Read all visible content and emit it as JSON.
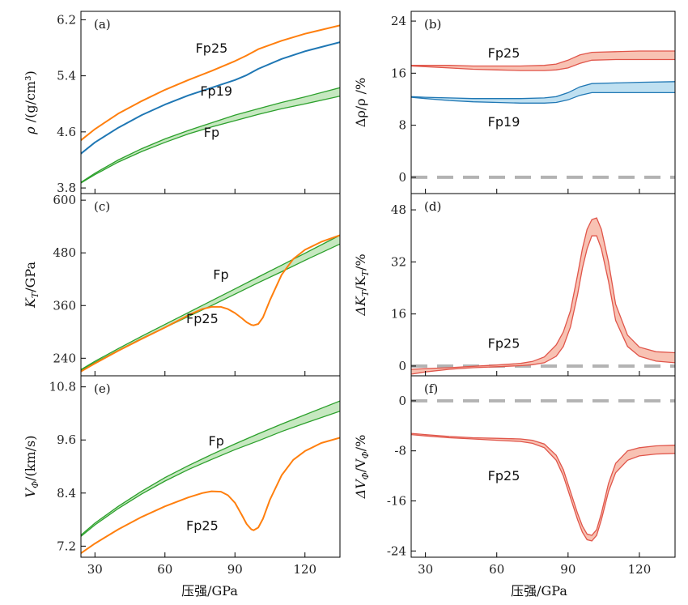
{
  "colors": {
    "fp": "#2ca02c",
    "fp_fill": "#c6e8c0",
    "fp19": "#1f77b4",
    "fp19_fill": "#bfe0f1",
    "fp25": "#ff7f0e",
    "fp25_diff": "#e0554a",
    "fp25_diff_fill": "#f8c2b3",
    "ref": "#b3b3b3"
  },
  "xlabel": "压强/GPa",
  "chart_data": [
    {
      "id": "a",
      "panel_label": "(a)",
      "type": "line",
      "ylabel": {
        "symbol": "ρ",
        "rest": " /(g/cm³)"
      },
      "xlim": [
        24,
        135
      ],
      "ylim": [
        3.72,
        6.32
      ],
      "yticks": [
        3.8,
        4.6,
        5.4,
        6.2
      ],
      "ytick_labels": [
        "3.8",
        "4.6",
        "5.4",
        "6.2"
      ],
      "xticks": [
        30,
        60,
        90,
        120
      ],
      "series": [
        {
          "name": "Fp25",
          "kind": "line",
          "color": "fp25",
          "x": [
            24,
            30,
            40,
            50,
            60,
            70,
            80,
            90,
            95,
            100,
            110,
            120,
            135
          ],
          "y": [
            4.48,
            4.64,
            4.86,
            5.04,
            5.2,
            5.34,
            5.47,
            5.61,
            5.69,
            5.78,
            5.9,
            6.0,
            6.12
          ]
        },
        {
          "name": "Fp19",
          "kind": "line",
          "color": "fp19",
          "x": [
            24,
            30,
            40,
            50,
            60,
            70,
            80,
            90,
            95,
            100,
            110,
            120,
            135
          ],
          "y": [
            4.29,
            4.45,
            4.66,
            4.84,
            4.99,
            5.12,
            5.23,
            5.34,
            5.41,
            5.5,
            5.64,
            5.75,
            5.88
          ]
        },
        {
          "name": "Fp",
          "kind": "band",
          "color": "fp",
          "fill": "fp_fill",
          "x": [
            24,
            30,
            40,
            50,
            60,
            70,
            80,
            90,
            100,
            110,
            120,
            135
          ],
          "y1": [
            3.87,
            3.99,
            4.17,
            4.32,
            4.45,
            4.57,
            4.67,
            4.76,
            4.85,
            4.93,
            5.0,
            5.11
          ],
          "y2": [
            3.88,
            4.01,
            4.2,
            4.36,
            4.5,
            4.62,
            4.73,
            4.84,
            4.93,
            5.02,
            5.1,
            5.23
          ]
        }
      ],
      "annotations": [
        {
          "text": "Fp25",
          "x": 80,
          "y": 5.73
        },
        {
          "text": "Fp19",
          "x": 82,
          "y": 5.12
        },
        {
          "text": "Fp",
          "x": 80,
          "y": 4.53
        }
      ]
    },
    {
      "id": "b",
      "panel_label": "(b)",
      "type": "line",
      "ylabel": {
        "symbol": "Δ",
        "rest": "ρ/ρ /%",
        "plain": true
      },
      "xlim": [
        24,
        135
      ],
      "ylim": [
        -2.5,
        25.5
      ],
      "yticks": [
        0,
        8,
        16,
        24
      ],
      "ytick_labels": [
        "0",
        "8",
        "16",
        "24"
      ],
      "xticks": [
        30,
        60,
        90,
        120
      ],
      "reference_line": 0,
      "series": [
        {
          "name": "Fp25",
          "kind": "band",
          "color": "fp25_diff",
          "fill": "fp25_diff_fill",
          "x": [
            24,
            30,
            40,
            50,
            60,
            70,
            80,
            85,
            90,
            95,
            100,
            110,
            120,
            135
          ],
          "y1": [
            17.1,
            17.0,
            16.8,
            16.6,
            16.5,
            16.4,
            16.4,
            16.5,
            16.8,
            17.5,
            18.0,
            18.1,
            18.1,
            18.1
          ],
          "y2": [
            17.2,
            17.2,
            17.2,
            17.1,
            17.1,
            17.1,
            17.2,
            17.4,
            18.0,
            18.8,
            19.2,
            19.3,
            19.4,
            19.4
          ]
        },
        {
          "name": "Fp19",
          "kind": "band",
          "color": "fp19",
          "fill": "fp19_fill",
          "x": [
            24,
            30,
            40,
            50,
            60,
            70,
            80,
            85,
            90,
            95,
            100,
            110,
            120,
            135
          ],
          "y1": [
            12.3,
            12.1,
            11.8,
            11.6,
            11.5,
            11.4,
            11.4,
            11.5,
            11.9,
            12.6,
            13.0,
            13.0,
            13.0,
            13.0
          ],
          "y2": [
            12.4,
            12.3,
            12.2,
            12.1,
            12.1,
            12.1,
            12.2,
            12.4,
            13.0,
            13.9,
            14.4,
            14.5,
            14.6,
            14.7
          ]
        }
      ],
      "annotations": [
        {
          "text": "Fp25",
          "x": 63,
          "y": 18.4
        },
        {
          "text": "Fp19",
          "x": 63,
          "y": 7.8
        }
      ]
    },
    {
      "id": "c",
      "panel_label": "(c)",
      "type": "line",
      "ylabel": {
        "symbol": "K",
        "sub": "T",
        "rest": "/GPa"
      },
      "xlim": [
        24,
        135
      ],
      "ylim": [
        200,
        615
      ],
      "yticks": [
        240,
        360,
        480,
        600
      ],
      "ytick_labels": [
        "240",
        "360",
        "480",
        "600"
      ],
      "xticks": [
        30,
        60,
        90,
        120
      ],
      "series": [
        {
          "name": "Fp",
          "kind": "band",
          "color": "fp",
          "fill": "fp_fill",
          "x": [
            24,
            30,
            40,
            50,
            60,
            70,
            80,
            90,
            100,
            110,
            120,
            135
          ],
          "y1": [
            212,
            230,
            258,
            285,
            310,
            335,
            360,
            386,
            412,
            437,
            463,
            500
          ],
          "y2": [
            214,
            233,
            262,
            290,
            317,
            344,
            371,
            398,
            425,
            452,
            479,
            520
          ]
        },
        {
          "name": "Fp25",
          "kind": "line",
          "color": "fp25",
          "x": [
            24,
            30,
            40,
            50,
            60,
            70,
            76,
            80,
            84,
            87,
            90,
            93,
            95,
            97,
            98,
            100,
            102,
            105,
            110,
            115,
            120,
            127,
            135
          ],
          "y": [
            210,
            228,
            257,
            284,
            310,
            338,
            352,
            357,
            357,
            352,
            343,
            331,
            322,
            316,
            315,
            318,
            333,
            372,
            430,
            466,
            487,
            505,
            520
          ]
        }
      ],
      "annotations": [
        {
          "text": "Fp",
          "x": 84,
          "y": 420
        },
        {
          "text": "Fp25",
          "x": 76,
          "y": 320
        }
      ]
    },
    {
      "id": "d",
      "panel_label": "(d)",
      "type": "line",
      "ylabel": {
        "symbol": "ΔK",
        "sub": "T",
        "rest": "/K",
        "sub2": "T",
        "rest2": "/%"
      },
      "xlim": [
        24,
        135
      ],
      "ylim": [
        -3,
        53
      ],
      "yticks": [
        0,
        16,
        32,
        48
      ],
      "ytick_labels": [
        "0",
        "16",
        "32",
        "48"
      ],
      "xticks": [
        30,
        60,
        90,
        120
      ],
      "reference_line": 0,
      "series": [
        {
          "name": "Fp25",
          "kind": "band",
          "color": "fp25_diff",
          "fill": "fp25_diff_fill",
          "x": [
            24,
            30,
            40,
            50,
            60,
            70,
            75,
            80,
            85,
            88,
            91,
            94,
            96,
            98,
            100,
            102,
            104,
            107,
            110,
            115,
            120,
            127,
            135
          ],
          "y1": [
            -2.5,
            -1.8,
            -1.0,
            -0.5,
            -0.2,
            0.1,
            0.4,
            1.0,
            3.0,
            6.0,
            12.0,
            22.0,
            30.0,
            36.0,
            40.0,
            40.0,
            36.0,
            26.0,
            14.0,
            6.0,
            3.0,
            1.5,
            1.0
          ],
          "y2": [
            -1.0,
            -0.8,
            -0.5,
            -0.1,
            0.3,
            0.8,
            1.4,
            2.8,
            6.5,
            10.5,
            17.0,
            28.0,
            36.0,
            42.0,
            45.0,
            45.5,
            42.0,
            32.0,
            19.0,
            9.5,
            5.8,
            4.4,
            4.1
          ]
        }
      ],
      "annotations": [
        {
          "text": "Fp25",
          "x": 63,
          "y": 5.6
        }
      ]
    },
    {
      "id": "e",
      "panel_label": "(e)",
      "type": "line",
      "ylabel": {
        "symbol": "V",
        "sub": "Φ",
        "rest": "/(km/s)"
      },
      "xlim": [
        24,
        135
      ],
      "ylim": [
        6.95,
        11.05
      ],
      "yticks": [
        7.2,
        8.4,
        9.6,
        10.8
      ],
      "ytick_labels": [
        "7.2",
        "8.4",
        "9.6",
        "10.8"
      ],
      "xticks": [
        30,
        60,
        90,
        120
      ],
      "series": [
        {
          "name": "Fp",
          "kind": "band",
          "color": "fp",
          "fill": "fp_fill",
          "x": [
            24,
            30,
            40,
            50,
            60,
            70,
            80,
            90,
            100,
            110,
            120,
            135
          ],
          "y1": [
            7.42,
            7.68,
            8.05,
            8.38,
            8.67,
            8.93,
            9.16,
            9.38,
            9.58,
            9.79,
            9.98,
            10.25
          ],
          "y2": [
            7.45,
            7.72,
            8.1,
            8.44,
            8.75,
            9.02,
            9.27,
            9.51,
            9.74,
            9.96,
            10.17,
            10.48
          ]
        },
        {
          "name": "Fp25",
          "kind": "line",
          "color": "fp25",
          "x": [
            24,
            30,
            40,
            50,
            60,
            70,
            76,
            80,
            84,
            87,
            90,
            93,
            95,
            97,
            98,
            100,
            102,
            105,
            110,
            115,
            120,
            127,
            135
          ],
          "y": [
            7.04,
            7.26,
            7.58,
            7.86,
            8.1,
            8.3,
            8.4,
            8.44,
            8.43,
            8.35,
            8.18,
            7.9,
            7.7,
            7.58,
            7.56,
            7.62,
            7.82,
            8.25,
            8.8,
            9.15,
            9.35,
            9.53,
            9.65
          ]
        }
      ],
      "annotations": [
        {
          "text": "Fp",
          "x": 82,
          "y": 9.48
        },
        {
          "text": "Fp25",
          "x": 76,
          "y": 7.56
        }
      ]
    },
    {
      "id": "f",
      "panel_label": "(f)",
      "type": "line",
      "ylabel": {
        "symbol": "ΔV",
        "sub": "Φ",
        "rest": "/V",
        "sub2": "Φ",
        "rest2": "/%"
      },
      "xlim": [
        24,
        135
      ],
      "ylim": [
        -25,
        4
      ],
      "yticks": [
        -24,
        -16,
        -8,
        0
      ],
      "ytick_labels": [
        "-24",
        "-16",
        "-8",
        "0"
      ],
      "xticks": [
        30,
        60,
        90,
        120
      ],
      "reference_line": 0,
      "series": [
        {
          "name": "Fp25",
          "kind": "band",
          "color": "fp25_diff",
          "fill": "fp25_diff_fill",
          "x": [
            24,
            30,
            40,
            50,
            60,
            70,
            75,
            80,
            85,
            88,
            91,
            94,
            96,
            98,
            100,
            102,
            104,
            107,
            110,
            115,
            120,
            127,
            135
          ],
          "y1": [
            -5.4,
            -5.6,
            -5.9,
            -6.1,
            -6.3,
            -6.5,
            -6.8,
            -7.5,
            -9.5,
            -12.0,
            -15.5,
            -19.0,
            -21.0,
            -22.2,
            -22.4,
            -21.5,
            -19.0,
            -14.5,
            -11.5,
            -9.5,
            -8.8,
            -8.5,
            -8.4
          ],
          "y2": [
            -5.2,
            -5.4,
            -5.7,
            -5.9,
            -6.0,
            -6.1,
            -6.3,
            -6.9,
            -8.7,
            -11.0,
            -14.5,
            -18.0,
            -20.0,
            -21.3,
            -21.5,
            -20.6,
            -18.0,
            -13.2,
            -10.0,
            -8.0,
            -7.5,
            -7.2,
            -7.1
          ]
        }
      ],
      "annotations": [
        {
          "text": "Fp25",
          "x": 63,
          "y": -12.7
        }
      ]
    }
  ]
}
